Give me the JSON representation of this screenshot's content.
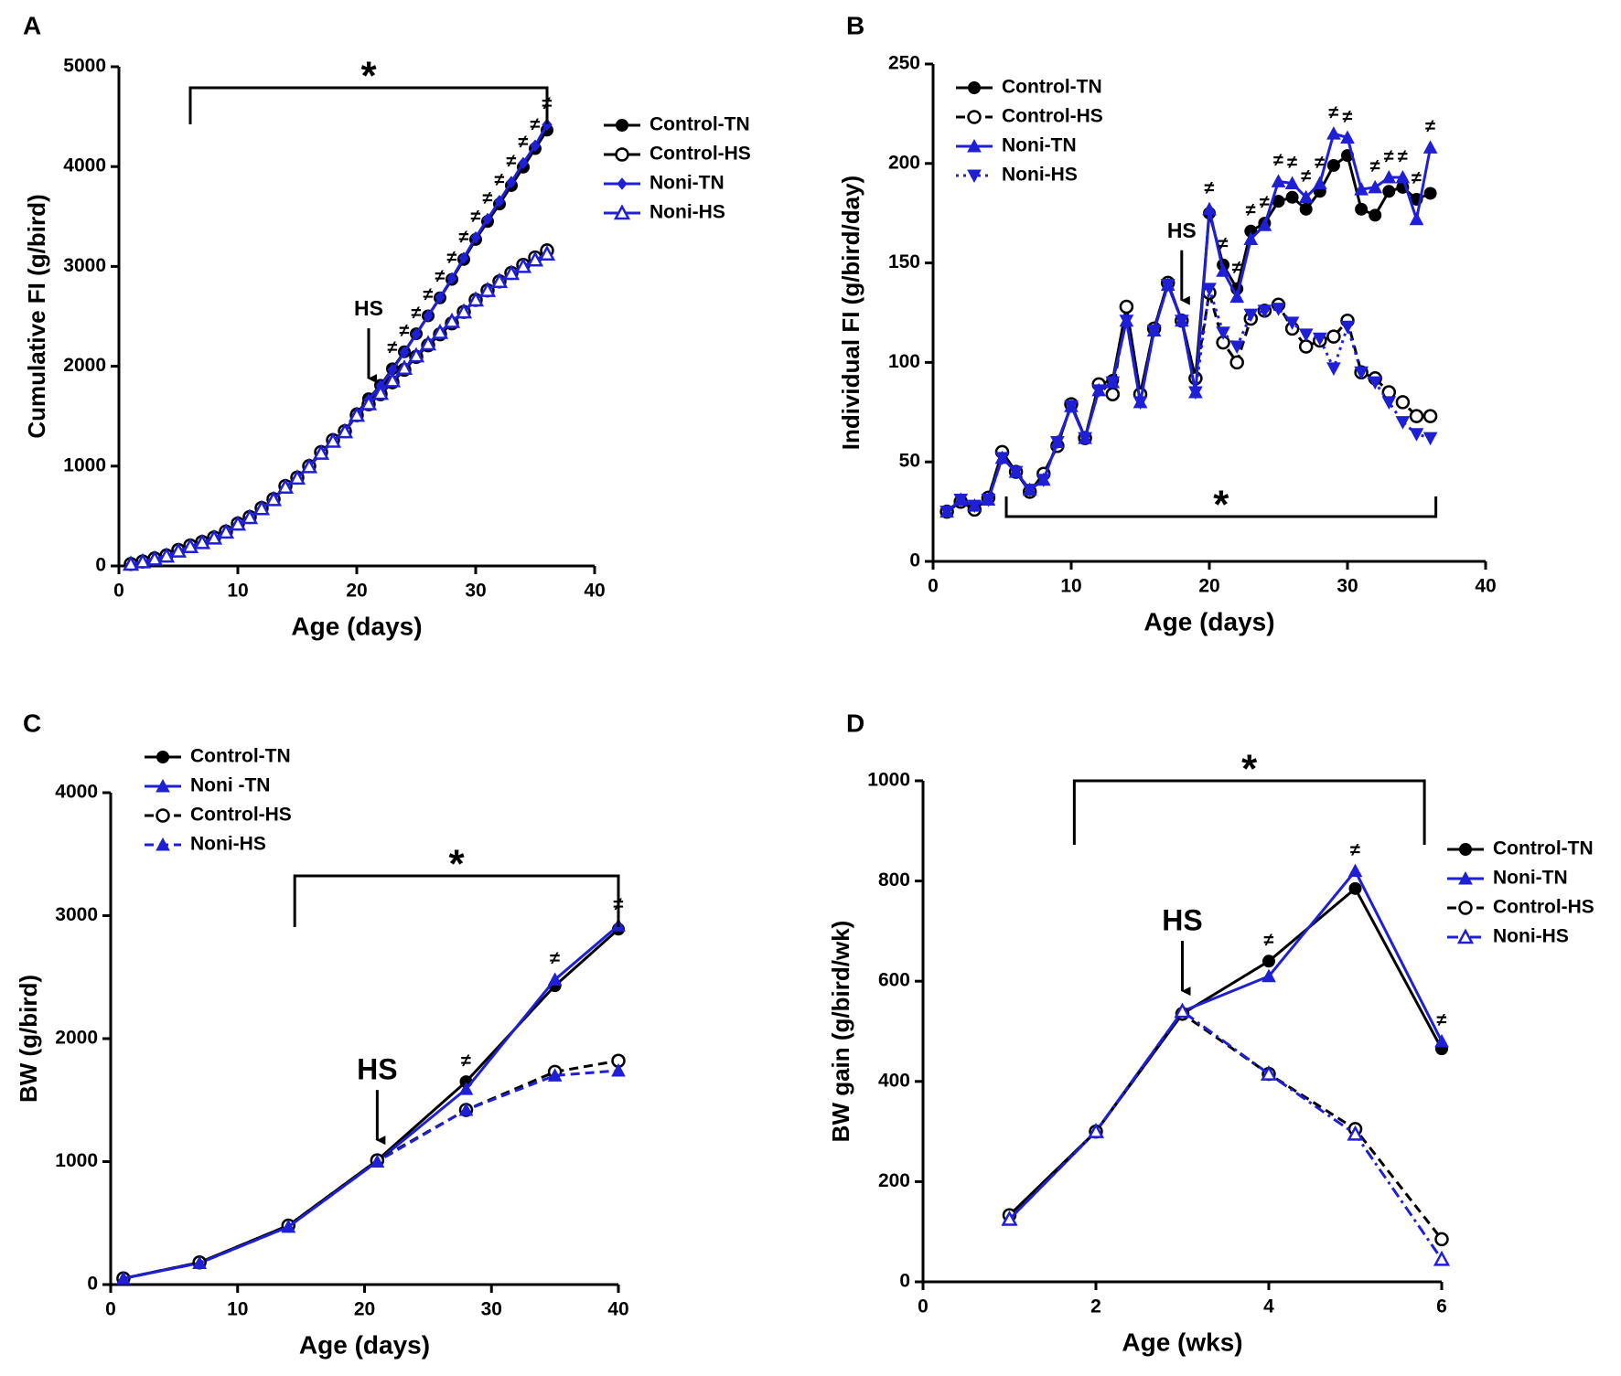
{
  "chart_data": [
    {
      "type": "line",
      "label": "A",
      "xlabel": "Age (days)",
      "ylabel": "Cumulative FI (g/bird)",
      "xlim": [
        0,
        40
      ],
      "xticks": [
        0,
        10,
        20,
        30,
        40
      ],
      "ylim": [
        0,
        5000
      ],
      "yticks": [
        0,
        1000,
        2000,
        3000,
        4000,
        5000
      ],
      "x": [
        1,
        2,
        3,
        4,
        5,
        6,
        7,
        8,
        9,
        10,
        11,
        12,
        13,
        14,
        15,
        16,
        17,
        18,
        19,
        20,
        21,
        22,
        23,
        24,
        25,
        26,
        27,
        28,
        29,
        30,
        31,
        32,
        33,
        34,
        35,
        36
      ],
      "series": [
        {
          "name": "Control-TN",
          "color": "#000000",
          "dash": "solid",
          "marker": "circle",
          "values": [
            20,
            45,
            75,
            105,
            160,
            205,
            240,
            285,
            345,
            425,
            490,
            580,
            670,
            800,
            885,
            1000,
            1140,
            1260,
            1350,
            1525,
            1675,
            1810,
            1975,
            2145,
            2325,
            2505,
            2685,
            2870,
            3070,
            3270,
            3450,
            3625,
            3810,
            3995,
            4180,
            4365
          ]
        },
        {
          "name": "Control-HS",
          "color": "#000000",
          "dash": "solid",
          "marker": "open-circle",
          "values": [
            20,
            45,
            75,
            105,
            160,
            205,
            240,
            285,
            345,
            425,
            490,
            580,
            670,
            800,
            885,
            1000,
            1140,
            1260,
            1350,
            1510,
            1620,
            1720,
            1840,
            1965,
            2095,
            2210,
            2320,
            2430,
            2545,
            2665,
            2760,
            2850,
            2935,
            3015,
            3090,
            3160
          ]
        },
        {
          "name": "Noni-TN",
          "color": "#1f1fd6",
          "dash": "solid",
          "marker": "diamond",
          "values": [
            18,
            42,
            70,
            100,
            150,
            195,
            235,
            280,
            340,
            420,
            485,
            575,
            665,
            790,
            880,
            995,
            1130,
            1250,
            1345,
            1515,
            1665,
            1805,
            1965,
            2140,
            2320,
            2505,
            2690,
            2880,
            3085,
            3290,
            3475,
            3655,
            3845,
            4035,
            4210,
            4420
          ]
        },
        {
          "name": "Noni-HS",
          "color": "#1f1fd6",
          "dash": "solid",
          "marker": "open-triangle",
          "values": [
            18,
            42,
            70,
            100,
            150,
            195,
            235,
            280,
            340,
            420,
            485,
            575,
            665,
            790,
            880,
            995,
            1130,
            1250,
            1345,
            1510,
            1625,
            1730,
            1855,
            1980,
            2105,
            2225,
            2340,
            2450,
            2545,
            2665,
            2760,
            2850,
            2930,
            3000,
            3065,
            3125
          ]
        }
      ],
      "bracket": {
        "text": "*",
        "x": [
          6,
          36
        ]
      },
      "arrow": {
        "text": "HS",
        "x": 21
      },
      "diff": {
        "text": "≠",
        "x": [
          23,
          24,
          25,
          26,
          27,
          28,
          29,
          30,
          31,
          32,
          33,
          34,
          35,
          36
        ]
      }
    },
    {
      "type": "line",
      "label": "B",
      "xlabel": "Age (days)",
      "ylabel": "Individual FI (g/bird/day)",
      "xlim": [
        0,
        40
      ],
      "xticks": [
        0,
        10,
        20,
        30,
        40
      ],
      "ylim": [
        0,
        250
      ],
      "yticks": [
        0,
        50,
        100,
        150,
        200,
        250
      ],
      "x": [
        1,
        2,
        3,
        4,
        5,
        6,
        7,
        8,
        9,
        10,
        11,
        12,
        13,
        14,
        15,
        16,
        17,
        18,
        19,
        20,
        21,
        22,
        23,
        24,
        25,
        26,
        27,
        28,
        29,
        30,
        31,
        32,
        33,
        34,
        35,
        36
      ],
      "series": [
        {
          "name": "Control-TN",
          "color": "#000000",
          "dash": "solid",
          "marker": "circle",
          "values": [
            25,
            30,
            26,
            32,
            55,
            45,
            35,
            44,
            58,
            79,
            62,
            89,
            91,
            128,
            84,
            117,
            140,
            121,
            92,
            175,
            149,
            137,
            166,
            170,
            181,
            183,
            177,
            186,
            199,
            204,
            177,
            174,
            186,
            188,
            182,
            185
          ]
        },
        {
          "name": "Control-HS",
          "color": "#000000",
          "dash": "dashed",
          "marker": "open-circle",
          "values": [
            25,
            30,
            26,
            32,
            55,
            45,
            35,
            44,
            58,
            79,
            62,
            89,
            84,
            128,
            84,
            117,
            140,
            121,
            92,
            135,
            110,
            100,
            122,
            126,
            129,
            117,
            108,
            111,
            113,
            121,
            95,
            92,
            85,
            80,
            73,
            73
          ]
        },
        {
          "name": "Noni-TN",
          "color": "#1f1fd6",
          "dash": "solid",
          "marker": "triangle",
          "values": [
            25,
            31,
            28,
            31,
            52,
            45,
            36,
            41,
            60,
            78,
            62,
            86,
            90,
            121,
            80,
            116,
            139,
            121,
            85,
            177,
            146,
            133,
            162,
            169,
            191,
            190,
            183,
            190,
            215,
            213,
            187,
            188,
            193,
            193,
            172,
            208
          ]
        },
        {
          "name": "Noni-HS",
          "color": "#1f1fd6",
          "dash": "dotted",
          "marker": "down-triangle",
          "values": [
            25,
            31,
            28,
            31,
            52,
            45,
            36,
            41,
            60,
            78,
            62,
            86,
            90,
            121,
            80,
            116,
            139,
            121,
            85,
            137,
            115,
            108,
            124,
            126,
            127,
            120,
            114,
            112,
            97,
            118,
            95,
            90,
            80,
            70,
            64,
            62
          ]
        }
      ],
      "bracket": {
        "text": "*",
        "x": [
          5.3,
          36.4
        ]
      },
      "arrow": {
        "text": "HS",
        "x": 18
      },
      "diff": {
        "text": "≠",
        "x": [
          20,
          21,
          22,
          23,
          24,
          25,
          26,
          27,
          28,
          29,
          30,
          32,
          33,
          34,
          35,
          36
        ]
      }
    },
    {
      "type": "line",
      "label": "C",
      "xlabel": "Age (days)",
      "ylabel": "BW (g/bird)",
      "xlim": [
        0,
        40
      ],
      "xticks": [
        0,
        10,
        20,
        30,
        40
      ],
      "ylim": [
        0,
        4000
      ],
      "yticks": [
        0,
        1000,
        2000,
        3000,
        4000
      ],
      "x": [
        1,
        7,
        14,
        21,
        28,
        35,
        40
      ],
      "series": [
        {
          "name": "Control-TN",
          "color": "#000000",
          "dash": "solid",
          "marker": "circle",
          "values": [
            50,
            180,
            480,
            1010,
            1650,
            2430,
            2890
          ]
        },
        {
          "name": "Noni -TN",
          "color": "#1f1fd6",
          "dash": "solid",
          "marker": "triangle",
          "values": [
            50,
            175,
            470,
            1000,
            1590,
            2480,
            2920
          ]
        },
        {
          "name": "Control-HS",
          "color": "#000000",
          "dash": "dashed",
          "marker": "open-circle",
          "values": [
            50,
            180,
            480,
            1010,
            1420,
            1730,
            1820
          ]
        },
        {
          "name": "Noni-HS",
          "color": "#1f1fd6",
          "dash": "dashed",
          "marker": "triangle",
          "values": [
            50,
            175,
            470,
            1000,
            1420,
            1700,
            1740
          ]
        }
      ],
      "bracket": {
        "text": "*",
        "x": [
          14.5,
          40
        ]
      },
      "arrow": {
        "text": "HS",
        "x": 21
      },
      "diff": {
        "text": "≠",
        "x": [
          28,
          35,
          40
        ]
      }
    },
    {
      "type": "line",
      "label": "D",
      "xlabel": "Age (wks)",
      "ylabel": "BW gain (g/bird/wk)",
      "xlim": [
        0,
        6
      ],
      "xticks": [
        0,
        2,
        4,
        6
      ],
      "ylim": [
        0,
        1000
      ],
      "yticks": [
        0,
        200,
        400,
        600,
        800,
        1000
      ],
      "x": [
        1,
        2,
        3,
        4,
        5,
        6
      ],
      "series": [
        {
          "name": "Control-TN",
          "color": "#000000",
          "dash": "solid",
          "marker": "circle",
          "values": [
            133,
            300,
            535,
            640,
            785,
            465
          ]
        },
        {
          "name": "Noni-TN",
          "color": "#1f1fd6",
          "dash": "solid",
          "marker": "triangle",
          "values": [
            125,
            300,
            540,
            610,
            820,
            480
          ]
        },
        {
          "name": "Control-HS",
          "color": "#000000",
          "dash": "dashed",
          "marker": "open-circle",
          "values": [
            133,
            300,
            535,
            415,
            305,
            85
          ]
        },
        {
          "name": "Noni-HS",
          "color": "#1f1fd6",
          "dash": "dashdot",
          "marker": "open-triangle",
          "values": [
            125,
            300,
            540,
            415,
            295,
            45
          ]
        }
      ],
      "bracket": {
        "text": "*",
        "x": [
          1.75,
          5.8
        ]
      },
      "arrow": {
        "text": "HS",
        "x": 3
      },
      "diff": {
        "text": "≠",
        "x": [
          4,
          5,
          6
        ]
      }
    }
  ]
}
